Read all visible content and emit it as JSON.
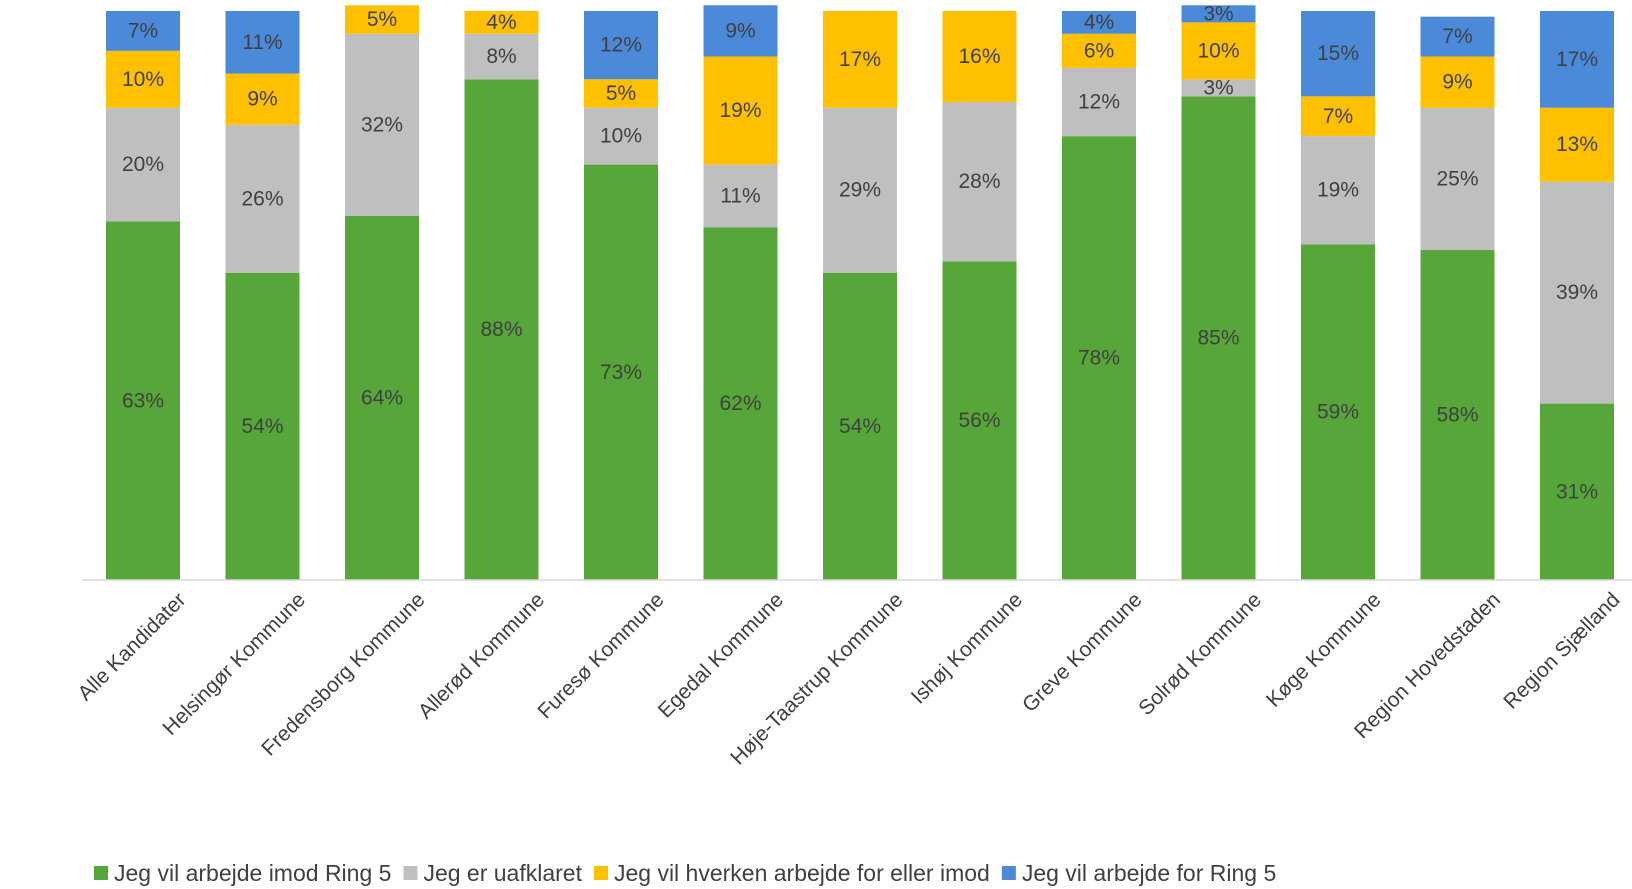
{
  "chart_data": {
    "type": "bar",
    "stacked": true,
    "normalized_percent": true,
    "categories": [
      "Alle Kandidater",
      "Helsingør Kommune",
      "Fredensborg Kommune",
      "Allerød Kommune",
      "Furesø Kommune",
      "Egedal Kommune",
      "Høje-Taastrup Kommune",
      "Ishøj Kommune",
      "Greve Kommune",
      "Solrød Kommune",
      "Køge Kommune",
      "Region Hovedstaden",
      "Region Sjælland"
    ],
    "series": [
      {
        "name": "Jeg vil arbejde imod Ring 5",
        "color": "#56a63a",
        "values": [
          63,
          54,
          64,
          88,
          73,
          62,
          54,
          56,
          78,
          85,
          59,
          58,
          31
        ]
      },
      {
        "name": "Jeg er uafklaret",
        "color": "#bfbfbf",
        "values": [
          20,
          26,
          32,
          8,
          10,
          11,
          29,
          28,
          12,
          3,
          19,
          25,
          39
        ]
      },
      {
        "name": "Jeg vil hverken arbejde for eller imod",
        "color": "#ffc000",
        "values": [
          10,
          9,
          5,
          4,
          5,
          19,
          17,
          16,
          6,
          10,
          7,
          9,
          13
        ]
      },
      {
        "name": "Jeg vil arbejde for Ring 5",
        "color": "#4a8ad8",
        "values": [
          7,
          11,
          0,
          0,
          12,
          9,
          0,
          0,
          4,
          3,
          15,
          7,
          17
        ]
      }
    ],
    "value_format": "{v}%",
    "ylim": [
      0,
      100
    ],
    "grid": false,
    "legend": "bottom",
    "title": "",
    "xlabel": "",
    "ylabel": ""
  }
}
